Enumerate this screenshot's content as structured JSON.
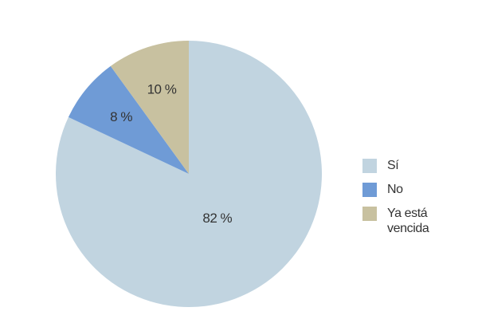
{
  "chart_data": {
    "type": "pie",
    "categories": [
      "Sí",
      "No",
      "Ya está vencida"
    ],
    "values": [
      82,
      8,
      10
    ],
    "value_labels": [
      "82 %",
      "8 %",
      "10 %"
    ],
    "colors": [
      "#c1d4e0",
      "#6f9bd6",
      "#c8c1a0"
    ]
  }
}
